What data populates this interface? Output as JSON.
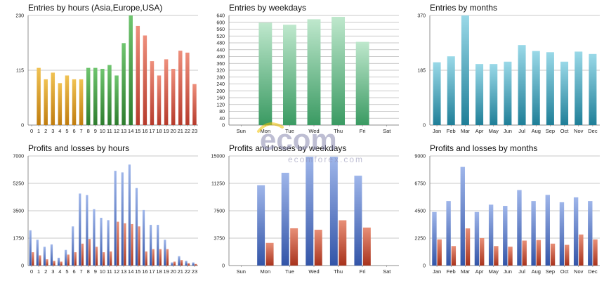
{
  "chart_data": [
    {
      "id": "entries_hours",
      "type": "bar",
      "title": "Entries by hours (Asia,Europe,USA)",
      "ylim": [
        0,
        230
      ],
      "yticks": [
        0,
        115,
        230
      ],
      "categories": [
        "0",
        "1",
        "2",
        "3",
        "4",
        "5",
        "6",
        "7",
        "8",
        "9",
        "10",
        "11",
        "12",
        "13",
        "14",
        "15",
        "16",
        "17",
        "18",
        "19",
        "20",
        "21",
        "22",
        "23"
      ],
      "series": [
        {
          "values": [
            0,
            120,
            96,
            110,
            88,
            104,
            96,
            96,
            120,
            120,
            118,
            126,
            104,
            172,
            230,
            208,
            188,
            134,
            104,
            138,
            118,
            156,
            152,
            86
          ]
        }
      ],
      "color_groups": [
        {
          "from": 0,
          "to": 7,
          "colors": [
            "#f0c253",
            "#c07d0f"
          ]
        },
        {
          "from": 8,
          "to": 14,
          "colors": [
            "#6fc56f",
            "#2e7d2e"
          ]
        },
        {
          "from": 15,
          "to": 23,
          "colors": [
            "#ee8f7c",
            "#b63b2c"
          ]
        }
      ]
    },
    {
      "id": "entries_weekdays",
      "type": "bar",
      "title": "Entries by weekdays",
      "ylim": [
        0,
        640
      ],
      "yticks": [
        0,
        40,
        80,
        120,
        160,
        200,
        240,
        280,
        320,
        360,
        400,
        440,
        480,
        520,
        560,
        600,
        640
      ],
      "categories": [
        "Sun",
        "Mon",
        "Tue",
        "Wed",
        "Thu",
        "Fri",
        "Sat"
      ],
      "series": [
        {
          "values": [
            0,
            598,
            586,
            618,
            632,
            486,
            0
          ]
        }
      ],
      "color_groups": [
        {
          "from": 0,
          "to": 6,
          "colors": [
            "#bfe8cd",
            "#3a9a62"
          ]
        }
      ]
    },
    {
      "id": "entries_months",
      "type": "bar",
      "title": "Entries by months",
      "ylim": [
        0,
        370
      ],
      "yticks": [
        0,
        185,
        370
      ],
      "categories": [
        "Jan",
        "Feb",
        "Mar",
        "Apr",
        "May",
        "Jun",
        "Jul",
        "Aug",
        "Sep",
        "Oct",
        "Nov",
        "Dec"
      ],
      "series": [
        {
          "values": [
            212,
            232,
            370,
            206,
            206,
            214,
            270,
            250,
            246,
            214,
            248,
            240
          ]
        }
      ],
      "color_groups": [
        {
          "from": 0,
          "to": 11,
          "colors": [
            "#9ad9e8",
            "#1f7f98"
          ]
        }
      ]
    },
    {
      "id": "pl_hours",
      "type": "bar",
      "title": "Profits and losses by hours",
      "ylim": [
        0,
        7000
      ],
      "yticks": [
        0,
        1750,
        3500,
        5250,
        7000
      ],
      "categories": [
        "0",
        "1",
        "2",
        "3",
        "4",
        "5",
        "6",
        "7",
        "8",
        "9",
        "10",
        "11",
        "12",
        "13",
        "14",
        "15",
        "16",
        "17",
        "18",
        "19",
        "20",
        "21",
        "22",
        "23"
      ],
      "series": [
        {
          "values": [
            2250,
            1650,
            1200,
            1350,
            500,
            1000,
            2500,
            4600,
            4500,
            3600,
            3050,
            2900,
            6050,
            5950,
            6450,
            4950,
            3550,
            2600,
            2600,
            1650,
            200,
            600,
            300,
            200
          ]
        },
        {
          "values": [
            850,
            650,
            400,
            300,
            250,
            700,
            850,
            1400,
            1700,
            1200,
            850,
            900,
            2800,
            2700,
            2650,
            2500,
            900,
            1050,
            1050,
            1050,
            250,
            350,
            150,
            100
          ]
        }
      ],
      "color_groups": [
        {
          "series": 0,
          "colors": [
            "#9fb6ea",
            "#3355a8"
          ]
        },
        {
          "series": 1,
          "colors": [
            "#e88f77",
            "#a8331d"
          ]
        }
      ]
    },
    {
      "id": "pl_weekdays",
      "type": "bar",
      "title": "Profits and losses by weekdays",
      "ylim": [
        0,
        15000
      ],
      "yticks": [
        0,
        3750,
        7500,
        11250,
        15000
      ],
      "categories": [
        "Sun",
        "Mon",
        "Tue",
        "Wed",
        "Thu",
        "Fri",
        "Sat"
      ],
      "series": [
        {
          "values": [
            0,
            11000,
            12700,
            14900,
            14900,
            12300,
            0
          ]
        },
        {
          "values": [
            0,
            3100,
            5100,
            4900,
            6200,
            5200,
            0
          ]
        }
      ],
      "color_groups": [
        {
          "series": 0,
          "colors": [
            "#9fb6ea",
            "#3355a8"
          ]
        },
        {
          "series": 1,
          "colors": [
            "#e88f77",
            "#a8331d"
          ]
        }
      ]
    },
    {
      "id": "pl_months",
      "type": "bar",
      "title": "Profits and losses by months",
      "ylim": [
        0,
        9000
      ],
      "yticks": [
        0,
        2250,
        4500,
        6750,
        9000
      ],
      "categories": [
        "Jan",
        "Feb",
        "Mar",
        "Apr",
        "May",
        "Jun",
        "Jul",
        "Aug",
        "Sep",
        "Oct",
        "Nov",
        "Dec"
      ],
      "series": [
        {
          "values": [
            4400,
            5300,
            8100,
            4400,
            5000,
            4900,
            6200,
            5300,
            5800,
            5200,
            5600,
            5300
          ]
        },
        {
          "values": [
            2150,
            1600,
            3050,
            2250,
            1600,
            1550,
            2050,
            2100,
            1800,
            1700,
            2550,
            2150
          ]
        }
      ],
      "color_groups": [
        {
          "series": 0,
          "colors": [
            "#9fb6ea",
            "#3355a8"
          ]
        },
        {
          "series": 1,
          "colors": [
            "#e88f77",
            "#a8331d"
          ]
        }
      ]
    }
  ],
  "watermark": {
    "wordmark": "ecom",
    "site": "ecomforex.com",
    "color": "#8a8ab0"
  }
}
